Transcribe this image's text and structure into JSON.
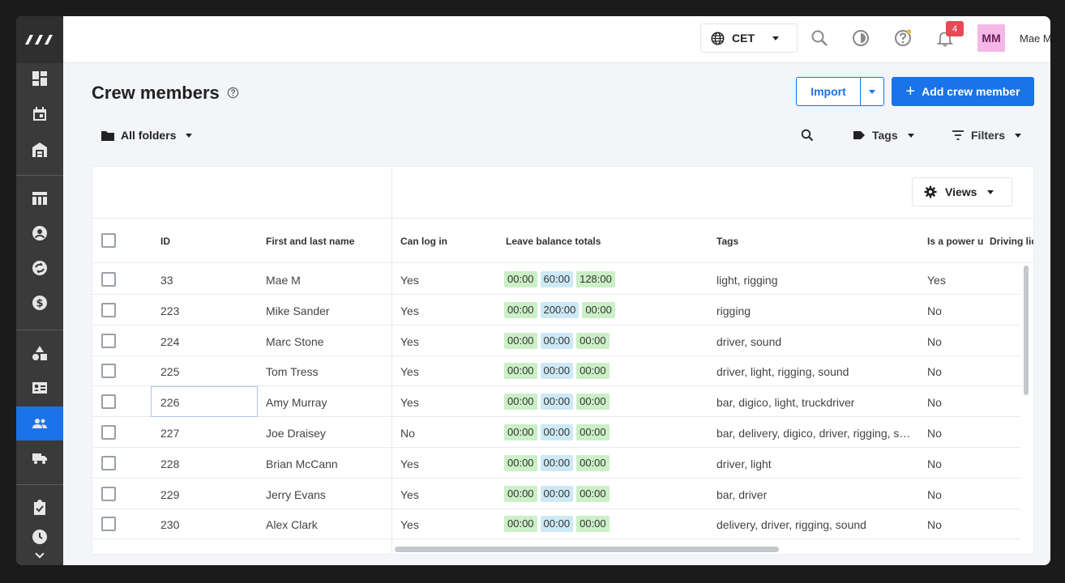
{
  "topbar": {
    "timezone": "CET",
    "notification_count": "4",
    "avatar_initials": "MM",
    "user_name": "Mae M"
  },
  "page": {
    "title": "Crew members",
    "import_label": "Import",
    "add_label": "Add crew member",
    "folders_label": "All folders",
    "tags_label": "Tags",
    "filters_label": "Filters",
    "views_label": "Views"
  },
  "table": {
    "columns": [
      "ID",
      "First and last name",
      "Can log in",
      "Leave balance totals",
      "Tags",
      "Is a power u",
      "Driving lic"
    ],
    "rows": [
      {
        "id": "33",
        "name": "Mae M",
        "login": "Yes",
        "leave": [
          "00:00",
          "60:00",
          "128:00"
        ],
        "tags": "light, rigging",
        "power": "Yes"
      },
      {
        "id": "223",
        "name": "Mike Sander",
        "login": "Yes",
        "leave": [
          "00:00",
          "200:00",
          "00:00"
        ],
        "tags": "rigging",
        "power": "No"
      },
      {
        "id": "224",
        "name": "Marc Stone",
        "login": "Yes",
        "leave": [
          "00:00",
          "00:00",
          "00:00"
        ],
        "tags": "driver, sound",
        "power": "No"
      },
      {
        "id": "225",
        "name": "Tom Tress",
        "login": "Yes",
        "leave": [
          "00:00",
          "00:00",
          "00:00"
        ],
        "tags": "driver, light, rigging, sound",
        "power": "No"
      },
      {
        "id": "226",
        "name": "Amy Murray",
        "login": "Yes",
        "leave": [
          "00:00",
          "00:00",
          "00:00"
        ],
        "tags": "bar, digico, light, truckdriver",
        "power": "No"
      },
      {
        "id": "227",
        "name": "Joe Draisey",
        "login": "No",
        "leave": [
          "00:00",
          "00:00",
          "00:00"
        ],
        "tags": "bar, delivery, digico, driver, rigging, sou…",
        "power": "No"
      },
      {
        "id": "228",
        "name": "Brian McCann",
        "login": "Yes",
        "leave": [
          "00:00",
          "00:00",
          "00:00"
        ],
        "tags": "driver, light",
        "power": "No"
      },
      {
        "id": "229",
        "name": "Jerry Evans",
        "login": "Yes",
        "leave": [
          "00:00",
          "00:00",
          "00:00"
        ],
        "tags": "bar, driver",
        "power": "No"
      },
      {
        "id": "230",
        "name": "Alex Clark",
        "login": "Yes",
        "leave": [
          "00:00",
          "00:00",
          "00:00"
        ],
        "tags": "delivery, driver, rigging, sound",
        "power": "No"
      }
    ]
  },
  "colors": {
    "accent": "#1a73e8",
    "sidebar": "#3a3a3a",
    "pill_green": "#cbefc6",
    "pill_blue": "#cde9f6",
    "badge": "#e84855"
  }
}
